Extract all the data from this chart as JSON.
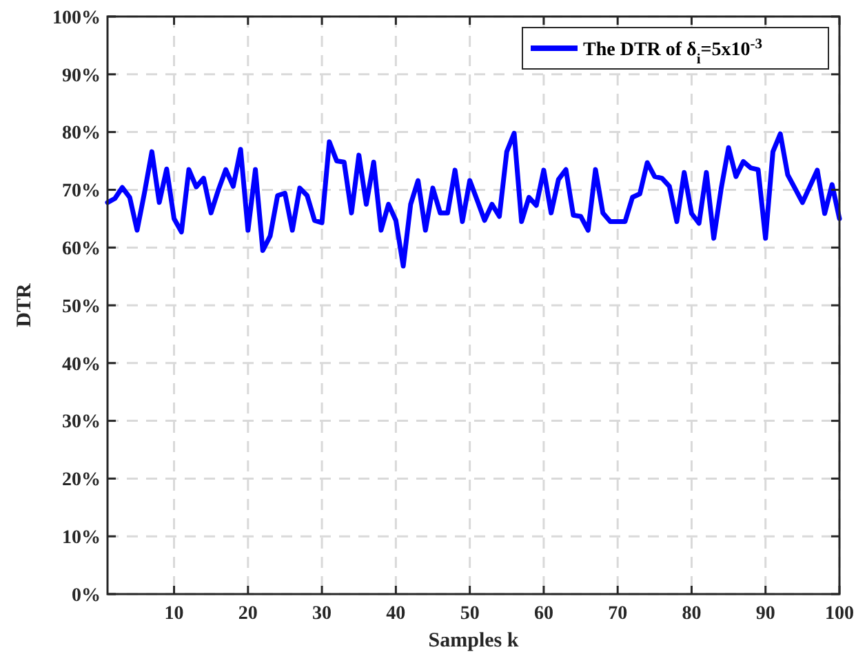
{
  "chart_data": {
    "type": "line",
    "xlabel": "Samples k",
    "ylabel": "DTR",
    "x": [
      1,
      2,
      3,
      4,
      5,
      6,
      7,
      8,
      9,
      10,
      11,
      12,
      13,
      14,
      15,
      16,
      17,
      18,
      19,
      20,
      21,
      22,
      23,
      24,
      25,
      26,
      27,
      28,
      29,
      30,
      31,
      32,
      33,
      34,
      35,
      36,
      37,
      38,
      39,
      40,
      41,
      42,
      43,
      44,
      45,
      46,
      47,
      48,
      49,
      50,
      51,
      52,
      53,
      54,
      55,
      56,
      57,
      58,
      59,
      60,
      61,
      62,
      63,
      64,
      65,
      66,
      67,
      68,
      69,
      70,
      71,
      72,
      73,
      74,
      75,
      76,
      77,
      78,
      79,
      80,
      81,
      82,
      83,
      84,
      85,
      86,
      87,
      88,
      89,
      90,
      91,
      92,
      93,
      94,
      95,
      96,
      97,
      98,
      99,
      100
    ],
    "series": [
      {
        "name": "The DTR of δ$_{i}$=5x10$^{-3}$",
        "color": "#0000ff",
        "values": [
          67.8,
          68.5,
          70.4,
          68.7,
          63,
          69.5,
          76.6,
          67.8,
          73.6,
          65,
          62.7,
          73.5,
          70.5,
          72,
          66,
          70,
          73.5,
          70.6,
          77,
          63,
          73.5,
          59.5,
          62,
          69,
          69.4,
          63,
          70.3,
          69,
          64.7,
          64.3,
          78.3,
          75,
          74.8,
          66,
          76,
          67.5,
          74.8,
          63,
          67.5,
          64.7,
          56.8,
          67.5,
          71.6,
          63,
          70.3,
          66,
          66,
          73.4,
          64.5,
          71.6,
          68.2,
          64.7,
          67.5,
          65.4,
          76.6,
          79.8,
          64.5,
          68.7,
          67.3,
          73.4,
          66,
          71.8,
          73.5,
          65.6,
          65.4,
          63,
          73.5,
          66,
          64.5,
          64.5,
          64.5,
          68.7,
          69.3,
          74.7,
          72.3,
          72,
          70.6,
          64.5,
          73,
          65.9,
          64.2,
          73,
          61.6,
          70.2,
          77.3,
          72.3,
          74.9,
          73.8,
          73.5,
          61.6,
          76.6,
          79.7,
          72.6,
          70.2,
          67.8,
          70.6,
          73.4,
          65.9,
          70.9,
          65
        ]
      }
    ],
    "xlim": [
      1,
      100
    ],
    "xticks": [
      10,
      20,
      30,
      40,
      50,
      60,
      70,
      80,
      90,
      100
    ],
    "ylim": [
      0,
      100
    ],
    "yticks": [
      {
        "value": 0,
        "label": "0%"
      },
      {
        "value": 10,
        "label": "10%"
      },
      {
        "value": 20,
        "label": "20%"
      },
      {
        "value": 30,
        "label": "30%"
      },
      {
        "value": 40,
        "label": "40%"
      },
      {
        "value": 50,
        "label": "50%"
      },
      {
        "value": 60,
        "label": "60%"
      },
      {
        "value": 70,
        "label": "70%"
      },
      {
        "value": 80,
        "label": "80%"
      },
      {
        "value": 90,
        "label": "90%"
      },
      {
        "value": 100,
        "label": "100%"
      }
    ],
    "grid": true,
    "legend": "top right",
    "line_style": "solid",
    "marker": "none"
  }
}
